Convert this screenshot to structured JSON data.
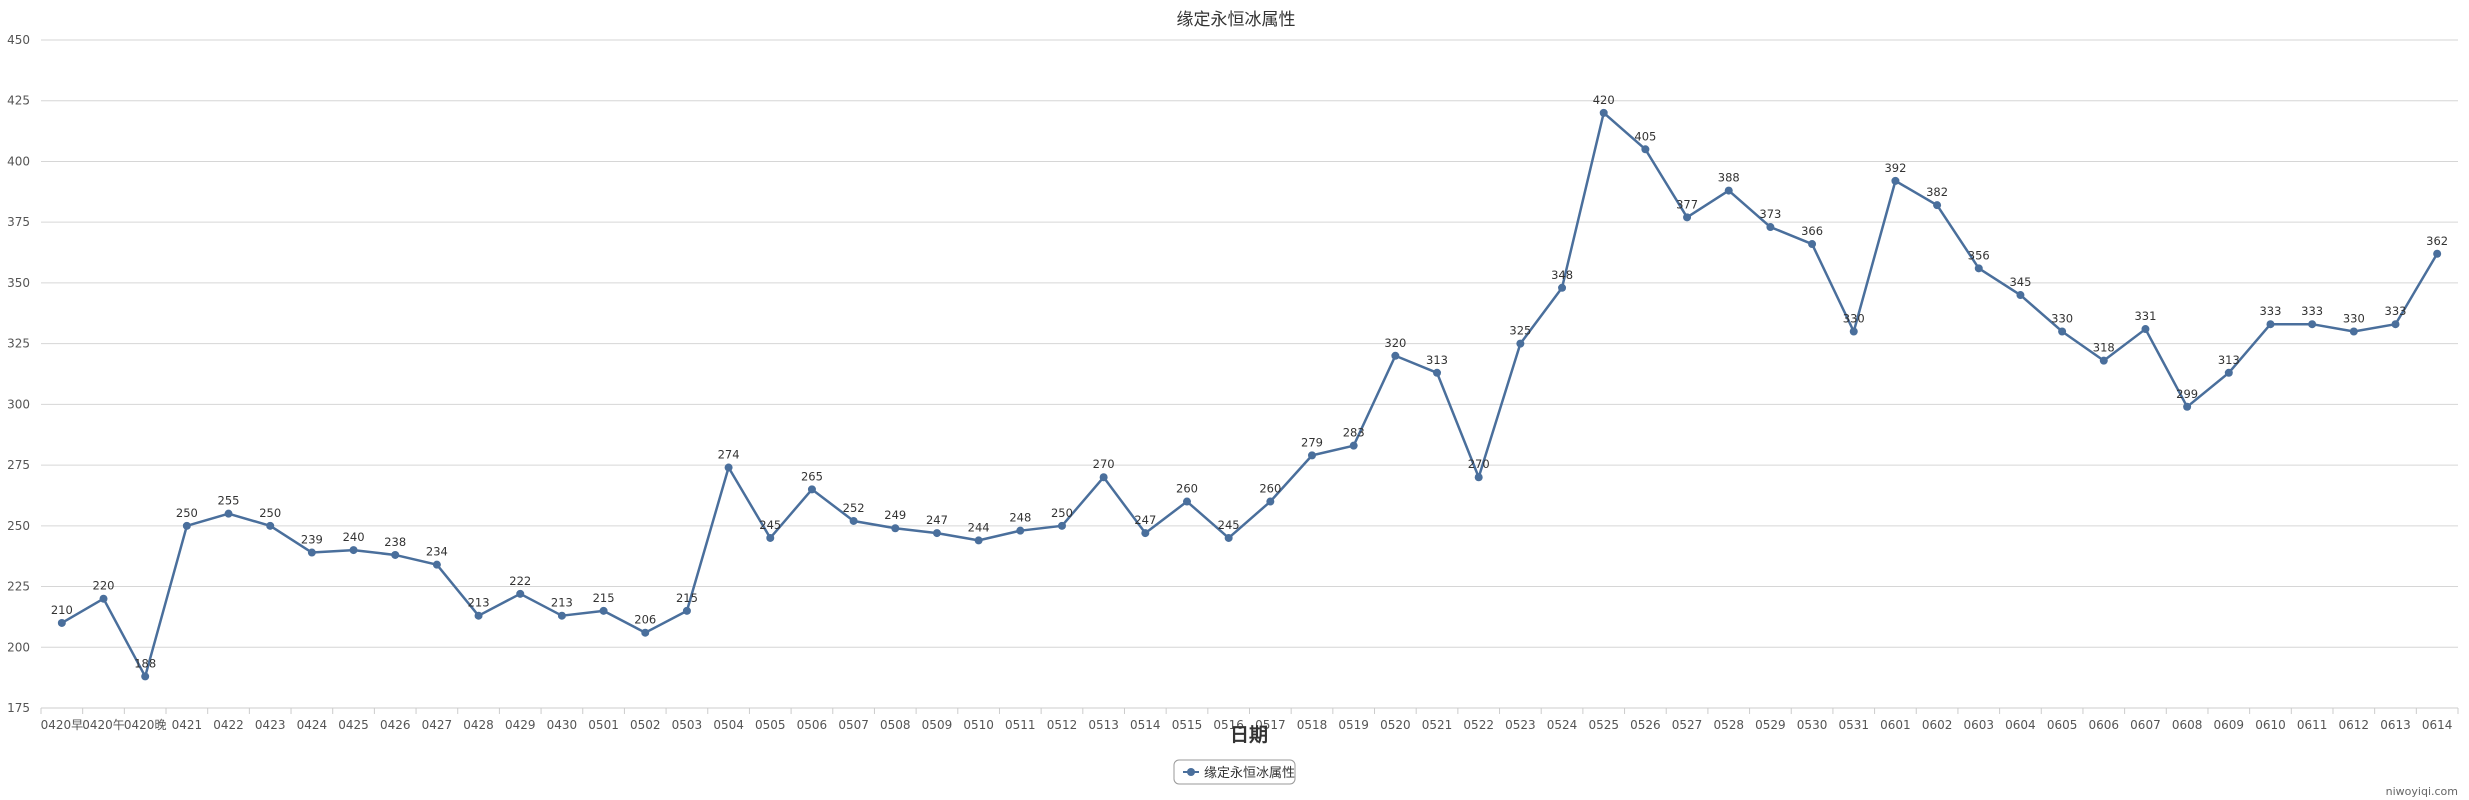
{
  "chart_data": {
    "type": "line",
    "title": "缘定永恒冰属性",
    "xlabel": "日期",
    "ylabel": "",
    "ylim": [
      175,
      450
    ],
    "yticks": [
      175,
      200,
      225,
      250,
      275,
      300,
      325,
      350,
      375,
      400,
      425,
      450
    ],
    "grid": true,
    "legend_position": "bottom-center",
    "categories": [
      "0420早",
      "0420午",
      "0420晚",
      "0421",
      "0422",
      "0423",
      "0424",
      "0425",
      "0426",
      "0427",
      "0428",
      "0429",
      "0430",
      "0501",
      "0502",
      "0503",
      "0504",
      "0505",
      "0506",
      "0507",
      "0508",
      "0509",
      "0510",
      "0511",
      "0512",
      "0513",
      "0514",
      "0515",
      "0516",
      "0517",
      "0518",
      "0519",
      "0520",
      "0521",
      "0522",
      "0523",
      "0524",
      "0525",
      "0526",
      "0527",
      "0528",
      "0529",
      "0530",
      "0531",
      "0601",
      "0602",
      "0603",
      "0604",
      "0605",
      "0606",
      "0607",
      "0608",
      "0609",
      "0610",
      "0611",
      "0612",
      "0613",
      "0614"
    ],
    "series": [
      {
        "name": "缘定永恒冰属性",
        "color": "#4a6f9c",
        "values": [
          210,
          220,
          188,
          250,
          255,
          250,
          239,
          240,
          238,
          234,
          213,
          222,
          213,
          215,
          206,
          215,
          274,
          245,
          265,
          252,
          249,
          247,
          244,
          248,
          250,
          270,
          247,
          260,
          245,
          260,
          279,
          283,
          320,
          313,
          270,
          325,
          348,
          420,
          405,
          377,
          388,
          373,
          366,
          330,
          392,
          382,
          356,
          345,
          330,
          318,
          331,
          299,
          313,
          333,
          333,
          330,
          333,
          362
        ]
      }
    ]
  },
  "watermark": "niwoyiqi.com"
}
